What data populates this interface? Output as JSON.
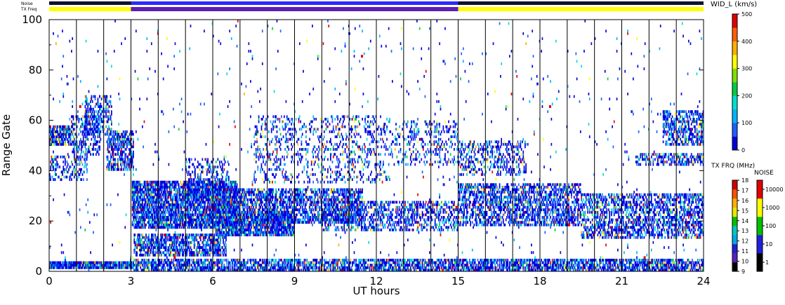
{
  "top_bars": {
    "noise_label": "Noise",
    "txfreq_label": "TX Freq",
    "colors": {
      "frame": "#000000",
      "noise_dark": "#101030",
      "noise_blue": "#2a2aff",
      "freq_yellow": "#ffff00",
      "freq_purple": "#5a20b8"
    }
  },
  "chart_data": {
    "type": "heatmap",
    "title": "",
    "xlabel": "UT hours",
    "ylabel": "Range Gate",
    "xlim": [
      0,
      24
    ],
    "ylim": [
      0,
      100
    ],
    "x_ticks": [
      "0",
      "3",
      "6",
      "9",
      "12",
      "15",
      "18",
      "21",
      "24"
    ],
    "y_ticks": [
      "0",
      "20",
      "40",
      "60",
      "80",
      "100"
    ],
    "scan_lines_every_hours": 1,
    "txfreq_segments": [
      {
        "from": 0,
        "to": 3,
        "color": "#ffff00"
      },
      {
        "from": 3,
        "to": 15,
        "color": "#5a20b8"
      },
      {
        "from": 15,
        "to": 24,
        "color": "#ffff00"
      }
    ],
    "regions": [
      {
        "x0": 0,
        "x1": 3.1,
        "y0": 1,
        "y1": 4,
        "density": 0.95
      },
      {
        "x0": 3.1,
        "x1": 24,
        "y0": 0,
        "y1": 5,
        "density": 0.7
      },
      {
        "x0": 0,
        "x1": 0.8,
        "y0": 50,
        "y1": 58,
        "density": 0.8
      },
      {
        "x0": 0.8,
        "x1": 1.9,
        "y0": 46,
        "y1": 62,
        "density": 0.35
      },
      {
        "x0": 1.3,
        "x1": 2.3,
        "y0": 54,
        "y1": 70,
        "density": 0.45
      },
      {
        "x0": 2.1,
        "x1": 3.1,
        "y0": 40,
        "y1": 56,
        "density": 0.6
      },
      {
        "x0": 0,
        "x1": 1.4,
        "y0": 36,
        "y1": 46,
        "density": 0.3
      },
      {
        "x0": 3.05,
        "x1": 6.9,
        "y0": 17,
        "y1": 36,
        "density": 0.8
      },
      {
        "x0": 3.1,
        "x1": 6.5,
        "y0": 6,
        "y1": 15,
        "density": 0.65
      },
      {
        "x0": 5.0,
        "x1": 6.6,
        "y0": 28,
        "y1": 45,
        "density": 0.35
      },
      {
        "x0": 6.0,
        "x1": 11.5,
        "y0": 19,
        "y1": 33,
        "density": 0.6
      },
      {
        "x0": 6.1,
        "x1": 9.0,
        "y0": 14,
        "y1": 24,
        "density": 0.8
      },
      {
        "x0": 10.0,
        "x1": 15.0,
        "y0": 16,
        "y1": 28,
        "density": 0.45
      },
      {
        "x0": 7.5,
        "x1": 12.5,
        "y0": 35,
        "y1": 62,
        "density": 0.18
      },
      {
        "x0": 12.5,
        "x1": 15.0,
        "y0": 42,
        "y1": 60,
        "density": 0.22
      },
      {
        "x0": 15.0,
        "x1": 19.5,
        "y0": 18,
        "y1": 35,
        "density": 0.55
      },
      {
        "x0": 19.5,
        "x1": 24.0,
        "y0": 13,
        "y1": 31,
        "density": 0.5
      },
      {
        "x0": 15.0,
        "x1": 17.5,
        "y0": 38,
        "y1": 52,
        "density": 0.3
      },
      {
        "x0": 22.5,
        "x1": 24.0,
        "y0": 50,
        "y1": 64,
        "density": 0.55
      },
      {
        "x0": 21.5,
        "x1": 24.0,
        "y0": 42,
        "y1": 47,
        "density": 0.45
      },
      {
        "x0": 0,
        "x1": 24,
        "y0": 0,
        "y1": 100,
        "density": 0.012
      }
    ]
  },
  "colorbar_width": {
    "title": "WID_L (km/s)",
    "ticks": [
      "0",
      "100",
      "200",
      "300",
      "400",
      "500"
    ],
    "colors": [
      "#0000dd",
      "#1f5fff",
      "#00b4ff",
      "#00e0d0",
      "#00cc44",
      "#80e000",
      "#ffff00",
      "#ffb000",
      "#ff6000",
      "#e00000"
    ]
  },
  "colorbar_txfreq": {
    "title": "TX FRQ (MHz)",
    "ticks": [
      "9",
      "10",
      "11",
      "12",
      "13",
      "14",
      "15",
      "16",
      "17",
      "18"
    ],
    "colors": [
      "#000000",
      "#5a20b8",
      "#2020d0",
      "#00a8e8",
      "#00c8c0",
      "#00c000",
      "#e8e800",
      "#ffb000",
      "#ff5000",
      "#d00000"
    ]
  },
  "colorbar_noise": {
    "title": "NOISE",
    "ticks": [
      "1",
      "10",
      "100",
      "1000",
      "10000"
    ],
    "colors": [
      "#000000",
      "#2020e0",
      "#00c000",
      "#ffff00",
      "#e00000"
    ]
  }
}
